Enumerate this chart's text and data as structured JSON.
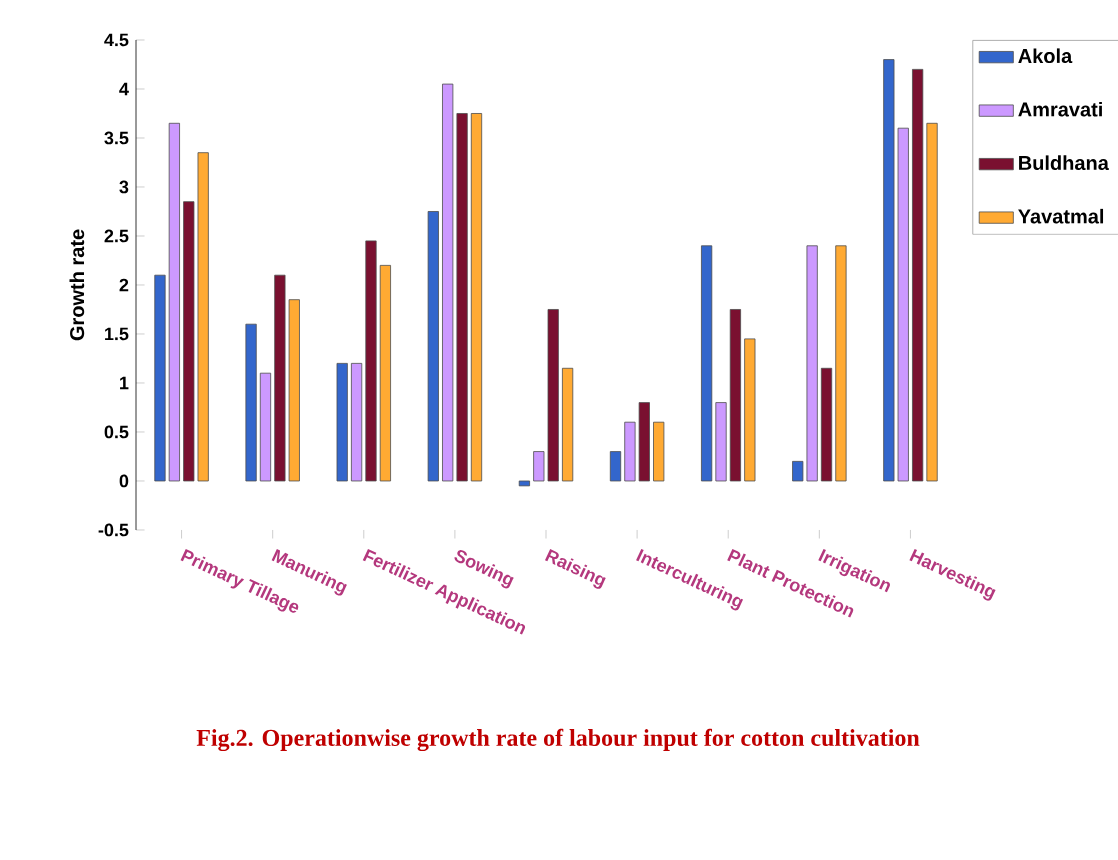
{
  "chart_data": {
    "type": "bar",
    "title": "Fig.2. Operationwise growth rate of  labour input for cotton cultivation",
    "ylabel": "Growth rate",
    "categories": [
      "Primary Tillage",
      "Manuring",
      "Fertilizer Application",
      "Sowing",
      "Raising",
      "Interculturing",
      "Plant Protection",
      "Irrigation",
      "Harvesting"
    ],
    "series": [
      {
        "name": "Akola",
        "color": "#3366cc",
        "values": [
          2.1,
          1.6,
          1.2,
          2.75,
          -0.05,
          0.3,
          2.4,
          0.2,
          4.3
        ]
      },
      {
        "name": "Amravati",
        "color": "#cc99ff",
        "values": [
          3.65,
          1.1,
          1.2,
          4.05,
          0.3,
          0.6,
          0.8,
          2.4,
          3.6
        ]
      },
      {
        "name": "Buldhana",
        "color": "#7a1030",
        "values": [
          2.85,
          2.1,
          2.45,
          3.75,
          1.75,
          0.8,
          1.75,
          1.15,
          4.2
        ]
      },
      {
        "name": "Yavatmal",
        "color": "#ffaa33",
        "values": [
          3.35,
          1.85,
          2.2,
          3.75,
          1.15,
          0.6,
          1.45,
          2.4,
          3.65
        ]
      }
    ],
    "ylim": [
      -0.5,
      4.5
    ],
    "yticks": [
      -0.5,
      0,
      0.5,
      1,
      1.5,
      2,
      2.5,
      3,
      3.5,
      4,
      4.5
    ],
    "grid": false,
    "legend": "right"
  }
}
